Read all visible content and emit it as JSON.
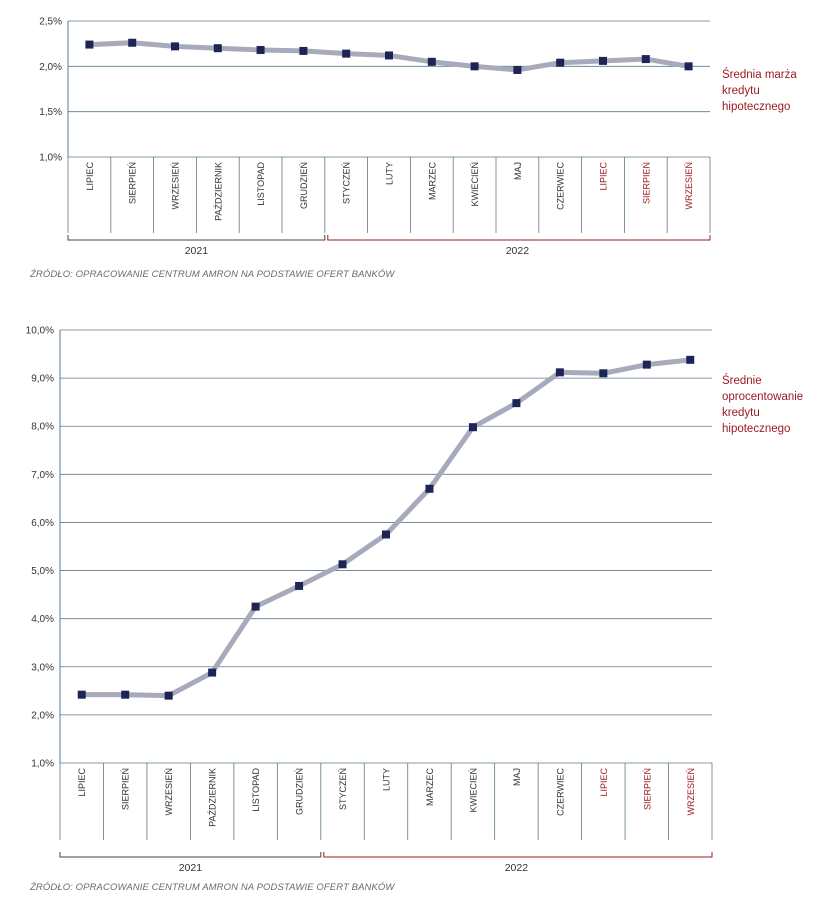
{
  "months": [
    "LIPIEC",
    "SIERPIEŃ",
    "WRZESIEŃ",
    "PAŹDZIERNIK",
    "LISTOPAD",
    "GRUDZIEŃ",
    "STYCZEŃ",
    "LUTY",
    "MARZEC",
    "KWIECIEŃ",
    "MAJ",
    "CZERWIEC",
    "LIPIEC",
    "SIERPIEŃ",
    "WRZESIEŃ"
  ],
  "years": [
    "2021",
    "2022"
  ],
  "source": "ŹRÓDŁO: OPRACOWANIE CENTRUM AMRON NA PODSTAWIE OFERT BANKÓW",
  "colors": {
    "line": "#a7aabb",
    "marker": "#1d2557",
    "grid": "#5b7a8c",
    "accent": "#9b1c23",
    "text": "#333333"
  },
  "chart_data": [
    {
      "type": "line",
      "series": [
        {
          "name": "Średnia marża kredytu hipotecznego",
          "values": [
            2.24,
            2.26,
            2.22,
            2.2,
            2.18,
            2.17,
            2.14,
            2.12,
            2.05,
            2.0,
            1.96,
            2.04,
            2.06,
            2.08,
            2.0
          ]
        }
      ],
      "yticks": [
        "1,0%",
        "1,5%",
        "2,0%",
        "2,5%"
      ],
      "ylim": [
        1.0,
        2.5
      ],
      "grid": "horizontal",
      "legend_position": "right"
    },
    {
      "type": "line",
      "series": [
        {
          "name": "Średnie oprocentowanie kredytu hipotecznego",
          "values": [
            2.42,
            2.42,
            2.4,
            2.88,
            4.25,
            4.68,
            5.13,
            5.75,
            6.7,
            7.98,
            8.48,
            9.12,
            9.1,
            9.28,
            9.38
          ]
        }
      ],
      "yticks": [
        "1,0%",
        "2,0%",
        "3,0%",
        "4,0%",
        "5,0%",
        "6,0%",
        "7,0%",
        "8,0%",
        "9,0%",
        "10,0%"
      ],
      "ylim": [
        1.0,
        10.0
      ],
      "grid": "horizontal",
      "legend_position": "right"
    }
  ],
  "legends": [
    [
      "Średnia marża",
      "kredytu",
      "hipotecznego"
    ],
    [
      "Średnie",
      "oprocentowanie",
      "kredytu",
      "hipotecznego"
    ]
  ]
}
